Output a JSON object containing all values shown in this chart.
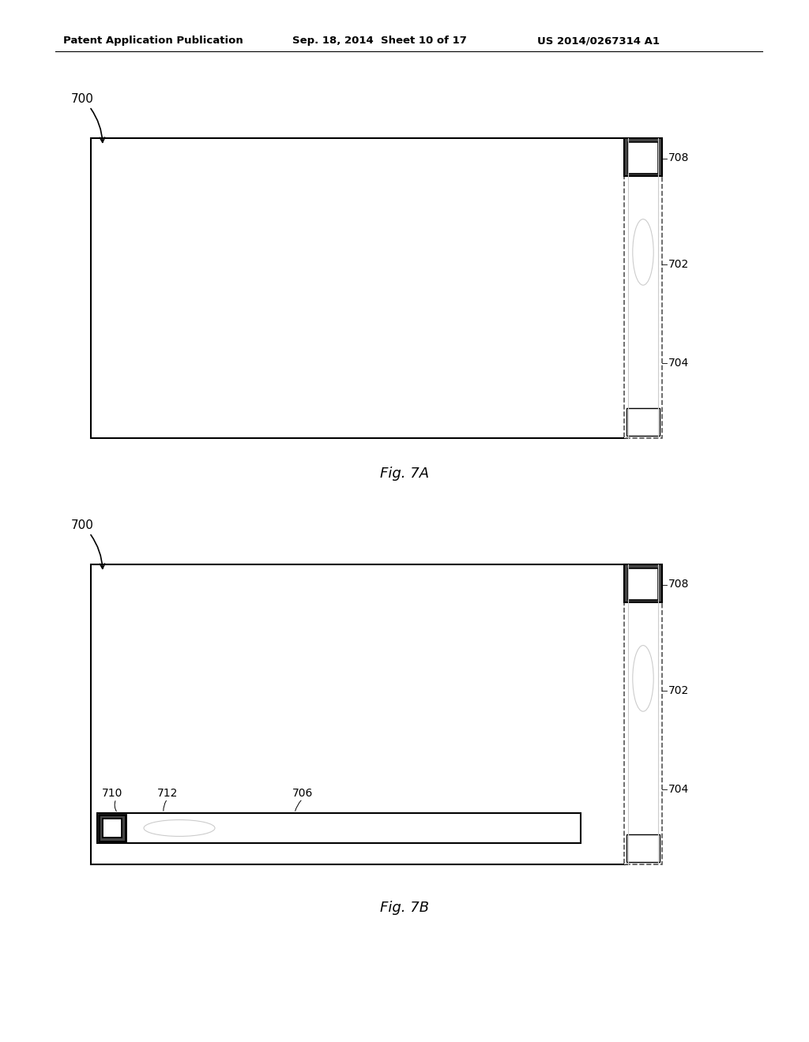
{
  "header_left": "Patent Application Publication",
  "header_mid": "Sep. 18, 2014  Sheet 10 of 17",
  "header_right": "US 2014/0267314 A1",
  "fig7a_label": "Fig. 7A",
  "fig7b_label": "Fig. 7B",
  "bg_color": "#ffffff",
  "line_color": "#000000",
  "gray": "#cccccc",
  "dark_gray": "#555555"
}
